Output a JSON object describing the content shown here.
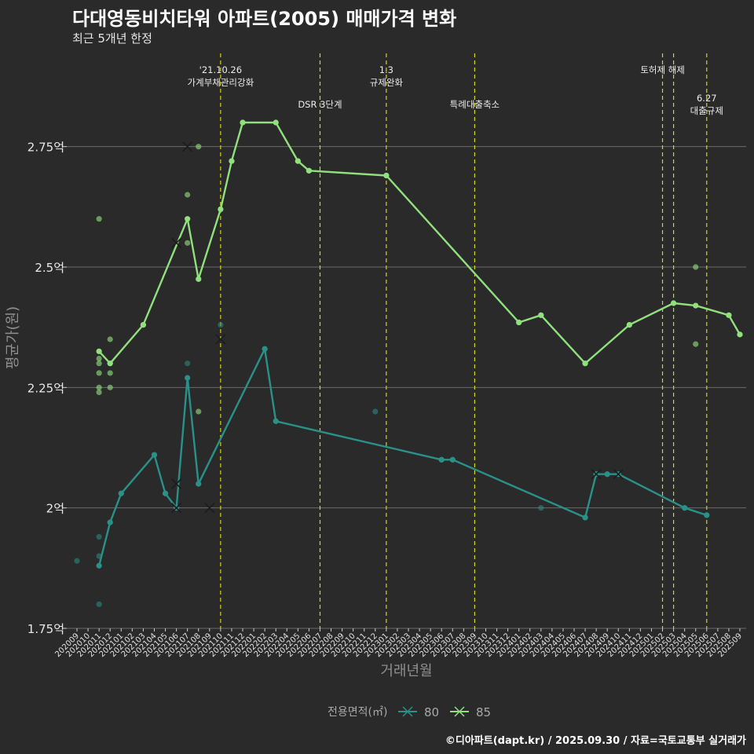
{
  "chart_data": {
    "type": "line",
    "title": "다대영동비치타워 아파트(2005) 매매가격 변화",
    "subtitle": "최근 5개년 한정",
    "xlabel": "거래년월",
    "ylabel": "평균가(원)",
    "caption": "©디아파트(dapt.kr) / 2025.09.30 / 자료=국토교통부 실거래가",
    "legend": {
      "title": "전용면적(㎡)",
      "position": "bottom"
    },
    "ylim": [
      1.75,
      2.95
    ],
    "y_ticks": [
      {
        "value": 1.75,
        "label": "1.75억"
      },
      {
        "value": 2.0,
        "label": "2억"
      },
      {
        "value": 2.25,
        "label": "2.25억"
      },
      {
        "value": 2.5,
        "label": "2.5억"
      },
      {
        "value": 2.75,
        "label": "2.75억"
      }
    ],
    "months": [
      "202009",
      "202010",
      "202011",
      "202012",
      "202101",
      "202102",
      "202103",
      "202104",
      "202105",
      "202106",
      "202107",
      "202108",
      "202109",
      "202110",
      "202111",
      "202112",
      "202201",
      "202202",
      "202203",
      "202204",
      "202205",
      "202206",
      "202207",
      "202208",
      "202209",
      "202210",
      "202211",
      "202212",
      "202301",
      "202302",
      "202303",
      "202304",
      "202305",
      "202306",
      "202307",
      "202308",
      "202309",
      "202310",
      "202311",
      "202312",
      "202401",
      "202402",
      "202403",
      "202404",
      "202405",
      "202406",
      "202407",
      "202408",
      "202409",
      "202410",
      "202411",
      "202412",
      "202501",
      "202502",
      "202503",
      "202504",
      "202505",
      "202506",
      "202507",
      "202508",
      "202509"
    ],
    "series": [
      {
        "name": "80",
        "color": "#2a9189",
        "line": [
          [
            2,
            1.88
          ],
          [
            3,
            1.97
          ],
          [
            4,
            2.03
          ],
          [
            7,
            2.11
          ],
          [
            8,
            2.03
          ],
          [
            9,
            2.0
          ],
          [
            10,
            2.27
          ],
          [
            11,
            2.05
          ],
          [
            17,
            2.33
          ],
          [
            18,
            2.18
          ],
          [
            33,
            2.1
          ],
          [
            34,
            2.1
          ],
          [
            46,
            1.98
          ],
          [
            47,
            2.07
          ],
          [
            48,
            2.07
          ],
          [
            49,
            2.07
          ],
          [
            55,
            2.0
          ],
          [
            57,
            1.985
          ]
        ],
        "points": [
          [
            0,
            1.89
          ],
          [
            2,
            1.8
          ],
          [
            2,
            1.9
          ],
          [
            2,
            1.94
          ],
          [
            3,
            1.97
          ],
          [
            4,
            2.03
          ],
          [
            7,
            2.11
          ],
          [
            8,
            2.03
          ],
          [
            9,
            2.0
          ],
          [
            10,
            2.3
          ],
          [
            11,
            2.05
          ],
          [
            13,
            2.38
          ],
          [
            17,
            2.33
          ],
          [
            18,
            2.18
          ],
          [
            27,
            2.2
          ],
          [
            33,
            2.1
          ],
          [
            34,
            2.1
          ],
          [
            42,
            2.0
          ],
          [
            46,
            1.98
          ],
          [
            47,
            2.07
          ],
          [
            48,
            2.07
          ],
          [
            55,
            2.0
          ],
          [
            57,
            1.985
          ]
        ],
        "cross": [
          [
            9,
            2.05
          ],
          [
            9,
            2.0
          ],
          [
            12,
            2.0
          ],
          [
            47,
            2.07
          ],
          [
            49,
            2.07
          ]
        ]
      },
      {
        "name": "85",
        "color": "#90e07e",
        "line": [
          [
            2,
            2.325
          ],
          [
            3,
            2.3
          ],
          [
            6,
            2.38
          ],
          [
            10,
            2.6
          ],
          [
            11,
            2.475
          ],
          [
            13,
            2.62
          ],
          [
            14,
            2.72
          ],
          [
            15,
            2.8
          ],
          [
            18,
            2.8
          ],
          [
            20,
            2.72
          ],
          [
            21,
            2.7
          ],
          [
            28,
            2.69
          ],
          [
            40,
            2.385
          ],
          [
            42,
            2.4
          ],
          [
            46,
            2.3
          ],
          [
            50,
            2.38
          ],
          [
            54,
            2.425
          ],
          [
            56,
            2.42
          ],
          [
            59,
            2.4
          ],
          [
            60,
            2.36
          ]
        ],
        "points": [
          [
            2,
            2.6
          ],
          [
            2,
            2.31
          ],
          [
            2,
            2.3
          ],
          [
            2,
            2.28
          ],
          [
            2,
            2.25
          ],
          [
            2,
            2.24
          ],
          [
            3,
            2.35
          ],
          [
            3,
            2.3
          ],
          [
            3,
            2.28
          ],
          [
            3,
            2.25
          ],
          [
            6,
            2.38
          ],
          [
            10,
            2.65
          ],
          [
            10,
            2.55
          ],
          [
            11,
            2.75
          ],
          [
            11,
            2.2
          ],
          [
            14,
            2.72
          ],
          [
            15,
            2.8
          ],
          [
            18,
            2.8
          ],
          [
            20,
            2.72
          ],
          [
            21,
            2.7
          ],
          [
            28,
            2.69
          ],
          [
            40,
            2.385
          ],
          [
            42,
            2.4
          ],
          [
            46,
            2.3
          ],
          [
            50,
            2.38
          ],
          [
            54,
            2.425
          ],
          [
            56,
            2.5
          ],
          [
            56,
            2.34
          ],
          [
            59,
            2.4
          ],
          [
            60,
            2.36
          ]
        ],
        "cross": [
          [
            10,
            2.75
          ],
          [
            9,
            2.55
          ],
          [
            13,
            2.35
          ]
        ]
      }
    ],
    "events": [
      {
        "month": 13,
        "lines": [
          "'21.10.26",
          "가계부채관리강화"
        ],
        "row": 0
      },
      {
        "month": 22,
        "lines": [
          "DSR 3단계"
        ],
        "row": 1
      },
      {
        "month": 28,
        "lines": [
          "1.3",
          "규제완화"
        ],
        "row": 0
      },
      {
        "month": 36,
        "lines": [
          "특례대출축소"
        ],
        "row": 1
      },
      {
        "month": 53,
        "lines": [],
        "row": 0
      },
      {
        "month": 54,
        "lines": [
          "토허제 해제"
        ],
        "row": 0,
        "shift": -14
      },
      {
        "month": 57,
        "lines": [
          "6.27",
          "대출규제"
        ],
        "row": 2
      }
    ]
  }
}
